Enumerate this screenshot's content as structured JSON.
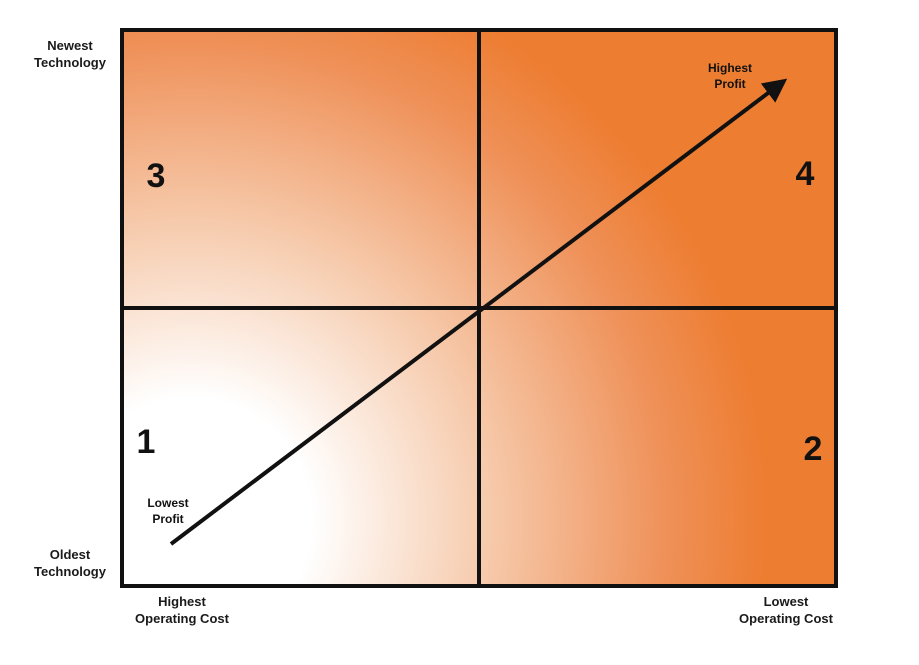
{
  "diagram": {
    "y_axis": {
      "top_label": [
        "Newest",
        "Technology"
      ],
      "bottom_label": [
        "Oldest",
        "Technology"
      ]
    },
    "x_axis": {
      "left_label": [
        "Highest",
        "Operating Cost"
      ],
      "right_label": [
        "Lowest",
        "Operating Cost"
      ]
    },
    "quadrants": [
      {
        "number": "1",
        "position": "bottom-left"
      },
      {
        "number": "2",
        "position": "bottom-right"
      },
      {
        "number": "3",
        "position": "top-left"
      },
      {
        "number": "4",
        "position": "top-right"
      }
    ],
    "arrow": {
      "start_label": [
        "Lowest",
        "Profit"
      ],
      "end_label": [
        "Highest",
        "Profit"
      ]
    },
    "colors": {
      "accent": "#ED7D31",
      "light": "#FFFFFF",
      "grid": "#111111"
    }
  }
}
